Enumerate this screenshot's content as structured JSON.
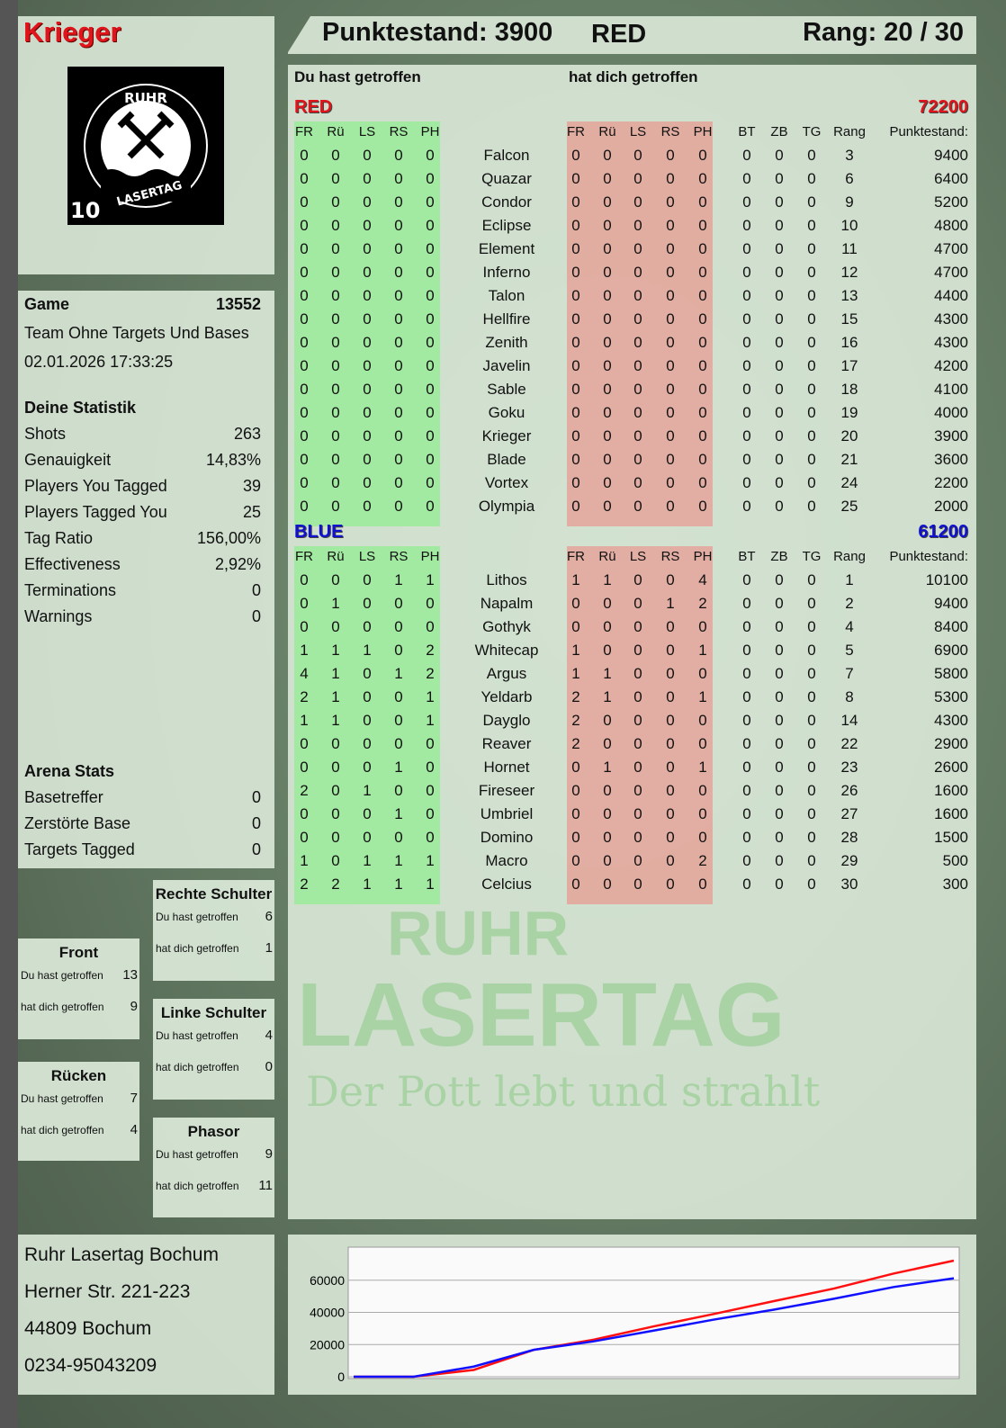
{
  "player": {
    "name": "Krieger",
    "logo_text": "RUHR LASERTAG",
    "badge_number": "10"
  },
  "header": {
    "score_label": "Punktestand: 3900",
    "team": "RED",
    "rank_label": "Rang: 20 / 30"
  },
  "game": {
    "label": "Game",
    "id": "13552",
    "mode": "Team Ohne Targets Und Bases",
    "datetime": "02.01.2026 17:33:25"
  },
  "stats": {
    "title": "Deine Statistik",
    "items": [
      {
        "label": "Shots",
        "value": "263"
      },
      {
        "label": "Genauigkeit",
        "value": "14,83%"
      },
      {
        "label": "Players You Tagged",
        "value": "39"
      },
      {
        "label": "Players Tagged You",
        "value": "25"
      },
      {
        "label": "Tag Ratio",
        "value": "156,00%"
      },
      {
        "label": "Effectiveness",
        "value": "2,92%"
      },
      {
        "label": "Terminations",
        "value": "0"
      },
      {
        "label": "Warnings",
        "value": "0"
      }
    ]
  },
  "arena": {
    "title": "Arena Stats",
    "items": [
      {
        "label": "Basetreffer",
        "value": "0"
      },
      {
        "label": "Zerstörte Base",
        "value": "0"
      },
      {
        "label": "Targets Tagged",
        "value": "0"
      }
    ]
  },
  "zones": [
    {
      "title": "Rechte Schulter",
      "given_label": "Du hast getroffen",
      "given": "6",
      "received_label": "hat dich getroffen",
      "received": "1"
    },
    {
      "title": "Front",
      "given_label": "Du hast getroffen",
      "given": "13",
      "received_label": "hat dich getroffen",
      "received": "9"
    },
    {
      "title": "Linke Schulter",
      "given_label": "Du hast getroffen",
      "given": "4",
      "received_label": "hat dich getroffen",
      "received": "0"
    },
    {
      "title": "Rücken",
      "given_label": "Du hast getroffen",
      "given": "7",
      "received_label": "hat dich getroffen",
      "received": "4"
    },
    {
      "title": "Phasor",
      "given_label": "Du hast getroffen",
      "given": "9",
      "received_label": "hat dich getroffen",
      "received": "11"
    }
  ],
  "table": {
    "given_title": "Du hast getroffen",
    "received_title": "hat dich getroffen",
    "hit_cols": [
      "FR",
      "Rü",
      "LS",
      "RS",
      "PH"
    ],
    "extra_cols": [
      "BT",
      "ZB",
      "TG",
      "Rang"
    ],
    "score_col": "Punktestand:",
    "teams": [
      {
        "name": "RED",
        "score": "72200",
        "color": "#e0141a",
        "players": [
          {
            "n": "Falcon",
            "g": [
              0,
              0,
              0,
              0,
              0
            ],
            "r": [
              0,
              0,
              0,
              0,
              0
            ],
            "x": [
              0,
              0,
              0,
              3
            ],
            "s": 9400
          },
          {
            "n": "Quazar",
            "g": [
              0,
              0,
              0,
              0,
              0
            ],
            "r": [
              0,
              0,
              0,
              0,
              0
            ],
            "x": [
              0,
              0,
              0,
              6
            ],
            "s": 6400
          },
          {
            "n": "Condor",
            "g": [
              0,
              0,
              0,
              0,
              0
            ],
            "r": [
              0,
              0,
              0,
              0,
              0
            ],
            "x": [
              0,
              0,
              0,
              9
            ],
            "s": 5200
          },
          {
            "n": "Eclipse",
            "g": [
              0,
              0,
              0,
              0,
              0
            ],
            "r": [
              0,
              0,
              0,
              0,
              0
            ],
            "x": [
              0,
              0,
              0,
              10
            ],
            "s": 4800
          },
          {
            "n": "Element",
            "g": [
              0,
              0,
              0,
              0,
              0
            ],
            "r": [
              0,
              0,
              0,
              0,
              0
            ],
            "x": [
              0,
              0,
              0,
              11
            ],
            "s": 4700
          },
          {
            "n": "Inferno",
            "g": [
              0,
              0,
              0,
              0,
              0
            ],
            "r": [
              0,
              0,
              0,
              0,
              0
            ],
            "x": [
              0,
              0,
              0,
              12
            ],
            "s": 4700
          },
          {
            "n": "Talon",
            "g": [
              0,
              0,
              0,
              0,
              0
            ],
            "r": [
              0,
              0,
              0,
              0,
              0
            ],
            "x": [
              0,
              0,
              0,
              13
            ],
            "s": 4400
          },
          {
            "n": "Hellfire",
            "g": [
              0,
              0,
              0,
              0,
              0
            ],
            "r": [
              0,
              0,
              0,
              0,
              0
            ],
            "x": [
              0,
              0,
              0,
              15
            ],
            "s": 4300
          },
          {
            "n": "Zenith",
            "g": [
              0,
              0,
              0,
              0,
              0
            ],
            "r": [
              0,
              0,
              0,
              0,
              0
            ],
            "x": [
              0,
              0,
              0,
              16
            ],
            "s": 4300
          },
          {
            "n": "Javelin",
            "g": [
              0,
              0,
              0,
              0,
              0
            ],
            "r": [
              0,
              0,
              0,
              0,
              0
            ],
            "x": [
              0,
              0,
              0,
              17
            ],
            "s": 4200
          },
          {
            "n": "Sable",
            "g": [
              0,
              0,
              0,
              0,
              0
            ],
            "r": [
              0,
              0,
              0,
              0,
              0
            ],
            "x": [
              0,
              0,
              0,
              18
            ],
            "s": 4100
          },
          {
            "n": "Goku",
            "g": [
              0,
              0,
              0,
              0,
              0
            ],
            "r": [
              0,
              0,
              0,
              0,
              0
            ],
            "x": [
              0,
              0,
              0,
              19
            ],
            "s": 4000
          },
          {
            "n": "Krieger",
            "g": [
              0,
              0,
              0,
              0,
              0
            ],
            "r": [
              0,
              0,
              0,
              0,
              0
            ],
            "x": [
              0,
              0,
              0,
              20
            ],
            "s": 3900
          },
          {
            "n": "Blade",
            "g": [
              0,
              0,
              0,
              0,
              0
            ],
            "r": [
              0,
              0,
              0,
              0,
              0
            ],
            "x": [
              0,
              0,
              0,
              21
            ],
            "s": 3600
          },
          {
            "n": "Vortex",
            "g": [
              0,
              0,
              0,
              0,
              0
            ],
            "r": [
              0,
              0,
              0,
              0,
              0
            ],
            "x": [
              0,
              0,
              0,
              24
            ],
            "s": 2200
          },
          {
            "n": "Olympia",
            "g": [
              0,
              0,
              0,
              0,
              0
            ],
            "r": [
              0,
              0,
              0,
              0,
              0
            ],
            "x": [
              0,
              0,
              0,
              25
            ],
            "s": 2000
          }
        ]
      },
      {
        "name": "BLUE",
        "score": "61200",
        "color": "#1010d0",
        "players": [
          {
            "n": "Lithos",
            "g": [
              0,
              0,
              0,
              1,
              1
            ],
            "r": [
              1,
              1,
              0,
              0,
              4
            ],
            "x": [
              0,
              0,
              0,
              1
            ],
            "s": 10100
          },
          {
            "n": "Napalm",
            "g": [
              0,
              1,
              0,
              0,
              0
            ],
            "r": [
              0,
              0,
              0,
              1,
              2
            ],
            "x": [
              0,
              0,
              0,
              2
            ],
            "s": 9400
          },
          {
            "n": "Gothyk",
            "g": [
              0,
              0,
              0,
              0,
              0
            ],
            "r": [
              0,
              0,
              0,
              0,
              0
            ],
            "x": [
              0,
              0,
              0,
              4
            ],
            "s": 8400
          },
          {
            "n": "Whitecap",
            "g": [
              1,
              1,
              1,
              0,
              2
            ],
            "r": [
              1,
              0,
              0,
              0,
              1
            ],
            "x": [
              0,
              0,
              0,
              5
            ],
            "s": 6900
          },
          {
            "n": "Argus",
            "g": [
              4,
              1,
              0,
              1,
              2
            ],
            "r": [
              1,
              1,
              0,
              0,
              0
            ],
            "x": [
              0,
              0,
              0,
              7
            ],
            "s": 5800
          },
          {
            "n": "Yeldarb",
            "g": [
              2,
              1,
              0,
              0,
              1
            ],
            "r": [
              2,
              1,
              0,
              0,
              1
            ],
            "x": [
              0,
              0,
              0,
              8
            ],
            "s": 5300
          },
          {
            "n": "Dayglo",
            "g": [
              1,
              1,
              0,
              0,
              1
            ],
            "r": [
              2,
              0,
              0,
              0,
              0
            ],
            "x": [
              0,
              0,
              0,
              14
            ],
            "s": 4300
          },
          {
            "n": "Reaver",
            "g": [
              0,
              0,
              0,
              0,
              0
            ],
            "r": [
              2,
              0,
              0,
              0,
              0
            ],
            "x": [
              0,
              0,
              0,
              22
            ],
            "s": 2900
          },
          {
            "n": "Hornet",
            "g": [
              0,
              0,
              0,
              1,
              0
            ],
            "r": [
              0,
              1,
              0,
              0,
              1
            ],
            "x": [
              0,
              0,
              0,
              23
            ],
            "s": 2600
          },
          {
            "n": "Fireseer",
            "g": [
              2,
              0,
              1,
              0,
              0
            ],
            "r": [
              0,
              0,
              0,
              0,
              0
            ],
            "x": [
              0,
              0,
              0,
              26
            ],
            "s": 1600
          },
          {
            "n": "Umbriel",
            "g": [
              0,
              0,
              0,
              1,
              0
            ],
            "r": [
              0,
              0,
              0,
              0,
              0
            ],
            "x": [
              0,
              0,
              0,
              27
            ],
            "s": 1600
          },
          {
            "n": "Domino",
            "g": [
              0,
              0,
              0,
              0,
              0
            ],
            "r": [
              0,
              0,
              0,
              0,
              0
            ],
            "x": [
              0,
              0,
              0,
              28
            ],
            "s": 1500
          },
          {
            "n": "Macro",
            "g": [
              1,
              0,
              1,
              1,
              1
            ],
            "r": [
              0,
              0,
              0,
              0,
              2
            ],
            "x": [
              0,
              0,
              0,
              29
            ],
            "s": 500
          },
          {
            "n": "Celcius",
            "g": [
              2,
              2,
              1,
              1,
              1
            ],
            "r": [
              0,
              0,
              0,
              0,
              0
            ],
            "x": [
              0,
              0,
              0,
              30
            ],
            "s": 300
          }
        ]
      }
    ]
  },
  "watermark": {
    "line1": "RUHR",
    "line2": "LASERTAG",
    "slogan": "Der Pott lebt und strahlt"
  },
  "address": {
    "lines": [
      "Ruhr Lasertag Bochum",
      "Herner Str. 221-223",
      "44809 Bochum",
      "0234-95043209"
    ]
  },
  "chart_data": {
    "type": "line",
    "ylim": [
      0,
      75000
    ],
    "yticks": [
      "0",
      "20000",
      "40000",
      "60000"
    ],
    "ytick_values": [
      0,
      20000,
      40000,
      60000
    ],
    "grid": true,
    "x": [
      0,
      1,
      2,
      3,
      4,
      5,
      6,
      7,
      8,
      9,
      10
    ],
    "series": [
      {
        "color": "#ff1010",
        "values": [
          0,
          0,
          4200,
          16700,
          23000,
          31300,
          39000,
          47000,
          54800,
          64200,
          72200
        ]
      },
      {
        "color": "#1010ff",
        "values": [
          0,
          0,
          6300,
          16700,
          22000,
          28700,
          35500,
          41700,
          48500,
          55800,
          61200
        ]
      }
    ]
  }
}
